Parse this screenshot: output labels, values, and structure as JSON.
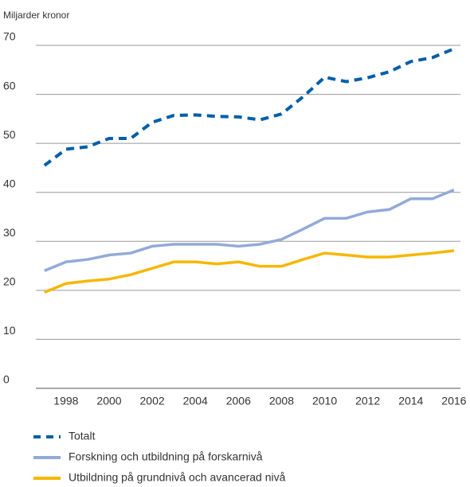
{
  "chart_data": {
    "type": "line",
    "y_label": "Miljarder kronor",
    "x": [
      1997,
      1998,
      1999,
      2000,
      2001,
      2002,
      2003,
      2004,
      2005,
      2006,
      2007,
      2008,
      2009,
      2010,
      2011,
      2012,
      2013,
      2014,
      2015,
      2016
    ],
    "xlim": [
      1996.6,
      2016.3
    ],
    "xticks": [
      1998,
      2000,
      2002,
      2004,
      2006,
      2008,
      2010,
      2012,
      2014,
      2016
    ],
    "ylim": [
      0,
      70
    ],
    "yticks": [
      0,
      10,
      20,
      30,
      40,
      50,
      60,
      70
    ],
    "grid": true,
    "series": [
      {
        "name": "Totalt",
        "color": "#005ea8",
        "dashed": true,
        "values": [
          45.5,
          48.8,
          49.3,
          51,
          51,
          54.3,
          55.7,
          55.8,
          55.5,
          55.4,
          54.8,
          56,
          59.5,
          63.5,
          62.6,
          63.4,
          64.6,
          66.7,
          67.5,
          69.3
        ]
      },
      {
        "name": "Forskning och utbildning på forskarnivå",
        "color": "#92aad9",
        "dashed": false,
        "values": [
          24,
          25.8,
          26.3,
          27.2,
          27.6,
          29,
          29.4,
          29.4,
          29.4,
          29,
          29.4,
          30.4,
          32.5,
          34.7,
          34.7,
          36,
          36.5,
          38.7,
          38.7,
          40.5
        ]
      },
      {
        "name": "Utbildning på grundnivå och avancerad nivå",
        "color": "#f6b700",
        "dashed": false,
        "values": [
          19.6,
          21.4,
          21.9,
          22.3,
          23.2,
          24.5,
          25.8,
          25.8,
          25.4,
          25.8,
          24.9,
          24.9,
          26.3,
          27.6,
          27.2,
          26.8,
          26.8,
          27.2,
          27.6,
          28.1
        ]
      }
    ]
  }
}
